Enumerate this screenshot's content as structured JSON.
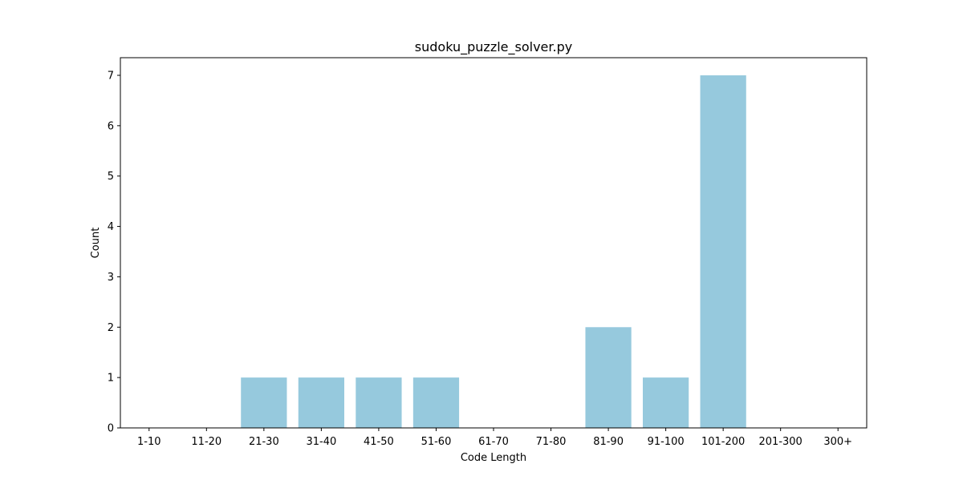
{
  "chart_data": {
    "type": "bar",
    "title": "sudoku_puzzle_solver.py",
    "xlabel": "Code Length",
    "ylabel": "Count",
    "categories": [
      "1-10",
      "11-20",
      "21-30",
      "31-40",
      "41-50",
      "51-60",
      "61-70",
      "71-80",
      "81-90",
      "91-100",
      "101-200",
      "201-300",
      "300+"
    ],
    "values": [
      0,
      0,
      1,
      1,
      1,
      1,
      0,
      0,
      2,
      1,
      7,
      0,
      0
    ],
    "ylim": [
      0,
      7.35
    ],
    "yticks": [
      0,
      1,
      2,
      3,
      4,
      5,
      6,
      7
    ],
    "grid": false,
    "legend": false,
    "colors": {
      "bar": "#96c9dd",
      "axes": "#000000",
      "background": "#ffffff"
    }
  }
}
